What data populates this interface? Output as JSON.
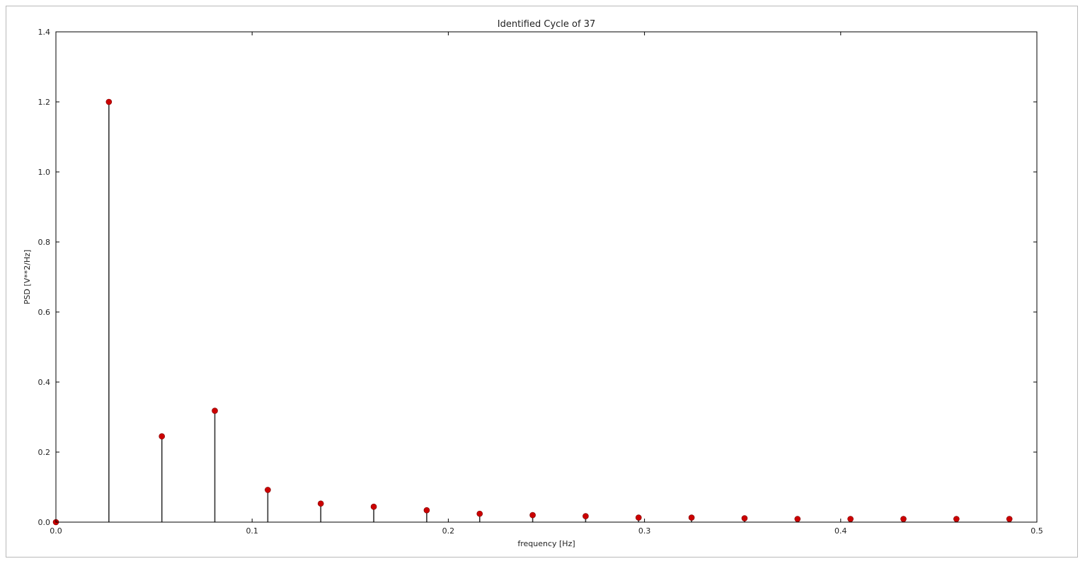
{
  "chart_data": {
    "type": "scatter",
    "style": "stem",
    "title": "Identified Cycle of 37",
    "xlabel": "frequency [Hz]",
    "ylabel": "PSD [V**2/Hz]",
    "xlim": [
      0,
      0.5
    ],
    "ylim": [
      0,
      1.4
    ],
    "xticks": [
      "0.0",
      "0.1",
      "0.2",
      "0.3",
      "0.4",
      "0.5"
    ],
    "yticks": [
      "0.0",
      "0.2",
      "0.4",
      "0.6",
      "0.8",
      "1.0",
      "1.2",
      "1.4"
    ],
    "grid": false,
    "marker_color": "#cc0000",
    "stem_color": "#333333",
    "series": [
      {
        "x": [
          0.0,
          0.027,
          0.054,
          0.081,
          0.108,
          0.135,
          0.162,
          0.189,
          0.216,
          0.243,
          0.27,
          0.297,
          0.324,
          0.351,
          0.378,
          0.405,
          0.432,
          0.459,
          0.486
        ],
        "y": [
          0.0,
          1.2,
          0.245,
          0.318,
          0.092,
          0.053,
          0.044,
          0.034,
          0.024,
          0.02,
          0.017,
          0.013,
          0.013,
          0.011,
          0.009,
          0.009,
          0.009,
          0.009,
          0.009
        ]
      }
    ]
  }
}
